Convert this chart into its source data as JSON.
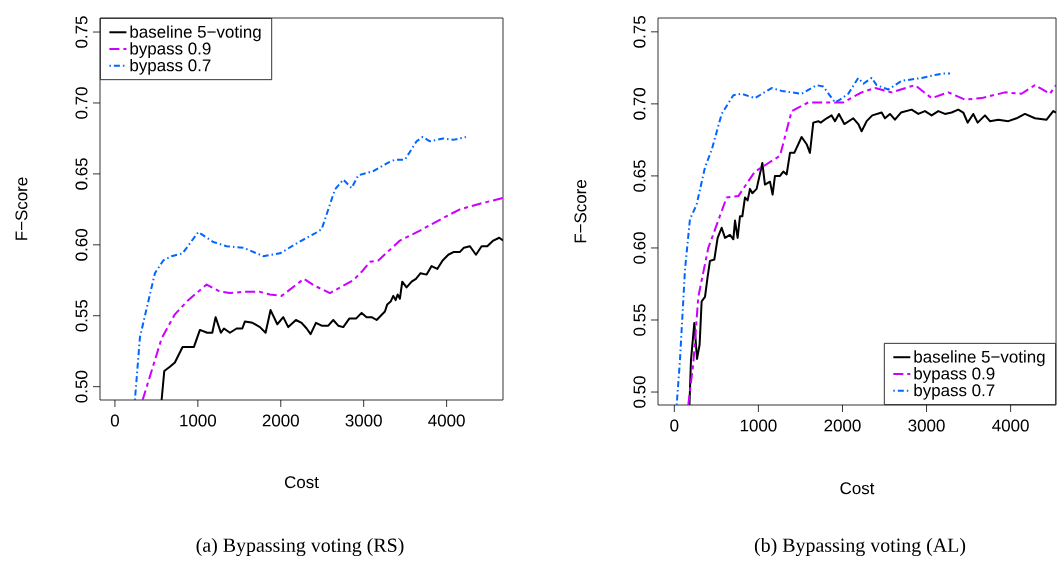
{
  "chart_data": [
    {
      "type": "line",
      "title": "(a) Bypassing voting (RS)",
      "xlabel": "Cost",
      "ylabel": "F−Score",
      "xlim": [
        -180,
        4680
      ],
      "ylim": [
        0.4906,
        0.7599
      ],
      "xticks": [
        0,
        1000,
        2000,
        3000,
        4000
      ],
      "yticks": [
        {
          "value": 0.5,
          "label": "0.50"
        },
        {
          "value": 0.55,
          "label": "0.55"
        },
        {
          "value": 0.6,
          "label": "0.60"
        },
        {
          "value": 0.65,
          "label": "0.65"
        },
        {
          "value": 0.7,
          "label": "0.70"
        },
        {
          "value": 0.75,
          "label": "0.75"
        }
      ],
      "legend": "top left",
      "series": [
        {
          "name": "baseline 5−voting",
          "color": "#000000",
          "line_style": "solid",
          "x": [
            563,
            595,
            663,
            723,
            816,
            953,
            1025,
            1113,
            1174,
            1214,
            1278,
            1315,
            1387,
            1467,
            1536,
            1568,
            1660,
            1749,
            1817,
            1877,
            1958,
            2030,
            2090,
            2183,
            2251,
            2312,
            2360,
            2424,
            2493,
            2573,
            2633,
            2693,
            2754,
            2826,
            2907,
            2975,
            3035,
            3096,
            3156,
            3256,
            3284,
            3325,
            3357,
            3385,
            3409,
            3437,
            3465,
            3517,
            3578,
            3630,
            3686,
            3759,
            3819,
            3887,
            3952,
            4020,
            4088,
            4161,
            4209,
            4281,
            4354,
            4422,
            4490,
            4563,
            4635,
            4680
          ],
          "values": [
            0.4906,
            0.511,
            0.514,
            0.517,
            0.528,
            0.528,
            0.54,
            0.538,
            0.538,
            0.549,
            0.538,
            0.541,
            0.538,
            0.541,
            0.541,
            0.546,
            0.545,
            0.542,
            0.538,
            0.554,
            0.544,
            0.549,
            0.542,
            0.547,
            0.545,
            0.541,
            0.537,
            0.545,
            0.543,
            0.543,
            0.547,
            0.543,
            0.542,
            0.548,
            0.548,
            0.552,
            0.549,
            0.549,
            0.547,
            0.553,
            0.558,
            0.56,
            0.564,
            0.561,
            0.565,
            0.562,
            0.574,
            0.57,
            0.574,
            0.576,
            0.58,
            0.579,
            0.585,
            0.583,
            0.589,
            0.593,
            0.595,
            0.595,
            0.598,
            0.599,
            0.593,
            0.599,
            0.599,
            0.603,
            0.605,
            0.603
          ]
        },
        {
          "name": "bypass 0.9",
          "color": "#cc00ff",
          "line_style": "dashed",
          "x": [
            334,
            563,
            723,
            884,
            1106,
            1266,
            1387,
            1588,
            1740,
            1869,
            2010,
            2279,
            2412,
            2593,
            2874,
            2975,
            3075,
            3176,
            3437,
            3678,
            3960,
            4161,
            4402,
            4680
          ],
          "values": [
            0.4906,
            0.534,
            0.551,
            0.561,
            0.572,
            0.567,
            0.566,
            0.567,
            0.567,
            0.565,
            0.564,
            0.576,
            0.571,
            0.566,
            0.575,
            0.581,
            0.588,
            0.589,
            0.603,
            0.61,
            0.619,
            0.625,
            0.629,
            0.633
          ]
        },
        {
          "name": "bypass 0.7",
          "color": "#0066ff",
          "line_style": "dashdot",
          "x": [
            241,
            302,
            382,
            482,
            583,
            683,
            816,
            1005,
            1186,
            1347,
            1548,
            1789,
            1990,
            2251,
            2412,
            2493,
            2653,
            2754,
            2854,
            2935,
            3116,
            3297,
            3377,
            3497,
            3638,
            3710,
            3799,
            3960,
            4080,
            4233
          ],
          "values": [
            0.4906,
            0.535,
            0.555,
            0.58,
            0.589,
            0.592,
            0.594,
            0.609,
            0.602,
            0.599,
            0.598,
            0.592,
            0.594,
            0.603,
            0.608,
            0.611,
            0.639,
            0.646,
            0.64,
            0.649,
            0.652,
            0.658,
            0.66,
            0.66,
            0.673,
            0.676,
            0.673,
            0.675,
            0.674,
            0.676
          ]
        }
      ]
    },
    {
      "type": "line",
      "title": "(b) Bypassing voting (AL)",
      "xlabel": "Cost",
      "ylabel": "F−Score",
      "xlim": [
        -194,
        4540
      ],
      "ylim": [
        0.491,
        0.7596
      ],
      "xticks": [
        0,
        1000,
        2000,
        3000,
        4000
      ],
      "yticks": [
        {
          "value": 0.5,
          "label": "0.50"
        },
        {
          "value": 0.55,
          "label": "0.55"
        },
        {
          "value": 0.6,
          "label": "0.60"
        },
        {
          "value": 0.65,
          "label": "0.65"
        },
        {
          "value": 0.7,
          "label": "0.70"
        },
        {
          "value": 0.75,
          "label": "0.75"
        }
      ],
      "legend": "bottom right",
      "series": [
        {
          "name": "baseline 5−voting",
          "color": "#000000",
          "line_style": "solid",
          "x": [
            180,
            198,
            238,
            270,
            301,
            325,
            365,
            396,
            424,
            476,
            515,
            563,
            603,
            662,
            702,
            722,
            753,
            781,
            809,
            840,
            872,
            900,
            928,
            979,
            1047,
            1078,
            1138,
            1169,
            1197,
            1257,
            1296,
            1336,
            1376,
            1427,
            1514,
            1574,
            1613,
            1653,
            1713,
            1741,
            1812,
            1871,
            1911,
            1958,
            2022,
            2129,
            2188,
            2228,
            2288,
            2355,
            2466,
            2505,
            2565,
            2624,
            2696,
            2823,
            2902,
            2981,
            3061,
            3140,
            3219,
            3298,
            3378,
            3437,
            3489,
            3556,
            3608,
            3695,
            3754,
            3853,
            3972,
            4071,
            4170,
            4289,
            4428,
            4507,
            4540
          ],
          "values": [
            0.491,
            0.522,
            0.548,
            0.523,
            0.533,
            0.563,
            0.566,
            0.58,
            0.591,
            0.592,
            0.607,
            0.614,
            0.607,
            0.609,
            0.606,
            0.619,
            0.607,
            0.622,
            0.622,
            0.635,
            0.633,
            0.641,
            0.638,
            0.641,
            0.659,
            0.644,
            0.646,
            0.637,
            0.65,
            0.65,
            0.653,
            0.651,
            0.666,
            0.666,
            0.677,
            0.672,
            0.666,
            0.687,
            0.688,
            0.687,
            0.69,
            0.692,
            0.688,
            0.693,
            0.686,
            0.69,
            0.686,
            0.681,
            0.688,
            0.692,
            0.694,
            0.69,
            0.693,
            0.689,
            0.694,
            0.696,
            0.693,
            0.695,
            0.692,
            0.695,
            0.693,
            0.694,
            0.696,
            0.694,
            0.687,
            0.693,
            0.687,
            0.692,
            0.688,
            0.689,
            0.688,
            0.69,
            0.693,
            0.69,
            0.689,
            0.695,
            0.694
          ]
        },
        {
          "name": "bypass 0.9",
          "color": "#cc00ff",
          "line_style": "dashed",
          "x": [
            166,
            226,
            285,
            404,
            622,
            761,
            959,
            1257,
            1396,
            1594,
            1792,
            2010,
            2228,
            2387,
            2585,
            2862,
            3061,
            3259,
            3457,
            3655,
            3933,
            4130,
            4289,
            4467,
            4540
          ],
          "values": [
            0.491,
            0.52,
            0.566,
            0.6,
            0.635,
            0.636,
            0.653,
            0.664,
            0.695,
            0.701,
            0.701,
            0.701,
            0.708,
            0.711,
            0.708,
            0.713,
            0.704,
            0.708,
            0.703,
            0.704,
            0.708,
            0.707,
            0.713,
            0.707,
            0.713
          ]
        },
        {
          "name": "bypass 0.7",
          "color": "#0066ff",
          "line_style": "dashdot",
          "x": [
            28,
            67,
            127,
            186,
            265,
            365,
            444,
            563,
            702,
            801,
            959,
            1158,
            1277,
            1396,
            1514,
            1633,
            1693,
            1772,
            1911,
            1971,
            2069,
            2188,
            2248,
            2347,
            2406,
            2545,
            2704,
            2823,
            2942,
            3101,
            3199,
            3279
          ],
          "values": [
            0.491,
            0.522,
            0.585,
            0.62,
            0.63,
            0.656,
            0.668,
            0.693,
            0.706,
            0.707,
            0.704,
            0.711,
            0.709,
            0.708,
            0.707,
            0.711,
            0.713,
            0.712,
            0.701,
            0.703,
            0.707,
            0.718,
            0.714,
            0.718,
            0.713,
            0.71,
            0.716,
            0.717,
            0.718,
            0.72,
            0.721,
            0.721
          ]
        }
      ]
    }
  ]
}
